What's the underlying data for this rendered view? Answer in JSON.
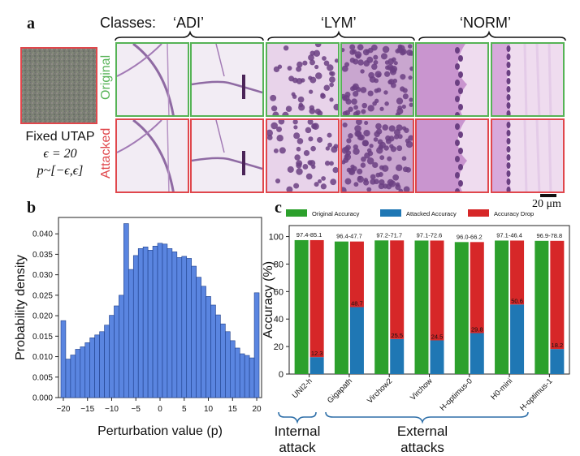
{
  "panel_a": {
    "letter": "a",
    "classes_prefix": "Classes:",
    "classes": [
      "‘ADI’",
      "‘LYM’",
      "‘NORM’"
    ],
    "row_original": "Original",
    "row_attacked": "Attacked",
    "utap_line1": "Fixed UTAP",
    "utap_line2": "ϵ = 20",
    "utap_line3": "p~[−ϵ,ϵ]",
    "scale_bar": "20 μm",
    "colors": {
      "original_border": "#56b356",
      "attacked_border": "#e0474c",
      "tissue": "#d9b6dc"
    }
  },
  "panel_b": {
    "letter": "b"
  },
  "panel_c": {
    "letter": "c",
    "internal_label_1": "Internal",
    "internal_label_2": "attack",
    "external_label_1": "External",
    "external_label_2": "attacks"
  },
  "chart_data": [
    {
      "type": "bar",
      "title": "",
      "xlabel": "Perturbation value (p)",
      "ylabel": "Probability density",
      "xlim": [
        -21,
        21
      ],
      "ylim": [
        0,
        0.044
      ],
      "xticks": [
        "−20",
        "−15",
        "−10",
        "−5",
        "0",
        "5",
        "10",
        "15",
        "20"
      ],
      "yticks": [
        "0.000",
        "0.005",
        "0.010",
        "0.015",
        "0.020",
        "0.025",
        "0.030",
        "0.035",
        "0.040"
      ],
      "bin_centers": [
        -20,
        -19,
        -18,
        -17,
        -16,
        -15,
        -14,
        -13,
        -12,
        -11,
        -10,
        -9,
        -8,
        -7,
        -6,
        -5,
        -4,
        -3,
        -2,
        -1,
        0,
        1,
        2,
        3,
        4,
        5,
        6,
        7,
        8,
        9,
        10,
        11,
        12,
        13,
        14,
        15,
        16,
        17,
        18,
        19,
        20
      ],
      "values": [
        0.0188,
        0.0094,
        0.0104,
        0.0118,
        0.0124,
        0.0134,
        0.0146,
        0.0153,
        0.0161,
        0.0177,
        0.0201,
        0.0224,
        0.025,
        0.0425,
        0.0313,
        0.0347,
        0.0364,
        0.0368,
        0.036,
        0.037,
        0.0377,
        0.0375,
        0.0364,
        0.0356,
        0.0342,
        0.0345,
        0.034,
        0.0321,
        0.0294,
        0.0272,
        0.0247,
        0.0226,
        0.0202,
        0.018,
        0.0161,
        0.0139,
        0.0121,
        0.0107,
        0.0103,
        0.0097,
        0.0256
      ],
      "color": "#5a85e0"
    },
    {
      "type": "bar",
      "title": "",
      "xlabel": "",
      "ylabel": "Accuracy (%)",
      "ylim": [
        0,
        108
      ],
      "yticks": [
        "0",
        "20",
        "40",
        "60",
        "80",
        "100"
      ],
      "categories": [
        "UNI2-h",
        "Gigapath",
        "Virchow2",
        "Virchow",
        "H-optimus-0",
        "H0-mini",
        "H-optimus-1"
      ],
      "series": [
        {
          "name": "Original Accuracy",
          "color": "#2ca02c",
          "values": [
            97.4,
            96.4,
            97.2,
            97.1,
            96.0,
            97.1,
            96.9
          ]
        },
        {
          "name": "Attacked Accuracy",
          "color": "#1f77b4",
          "values": [
            12.3,
            48.7,
            25.5,
            24.5,
            29.8,
            50.6,
            18.2
          ]
        },
        {
          "name": "Accuracy Drop",
          "color": "#d62728",
          "values": [
            85.1,
            47.7,
            71.7,
            72.6,
            66.2,
            46.4,
            78.8
          ]
        }
      ],
      "top_labels": [
        "97.4-85.1",
        "96.4-47.7",
        "97.2-71.7",
        "97.1-72.6",
        "96.0-66.2",
        "97.1-46.4",
        "96.9-78.8"
      ],
      "attacked_labels": [
        "12.3",
        "48.7",
        "25.5",
        "24.5",
        "29.8",
        "50.6",
        "18.2"
      ],
      "legend_position": "top"
    }
  ]
}
